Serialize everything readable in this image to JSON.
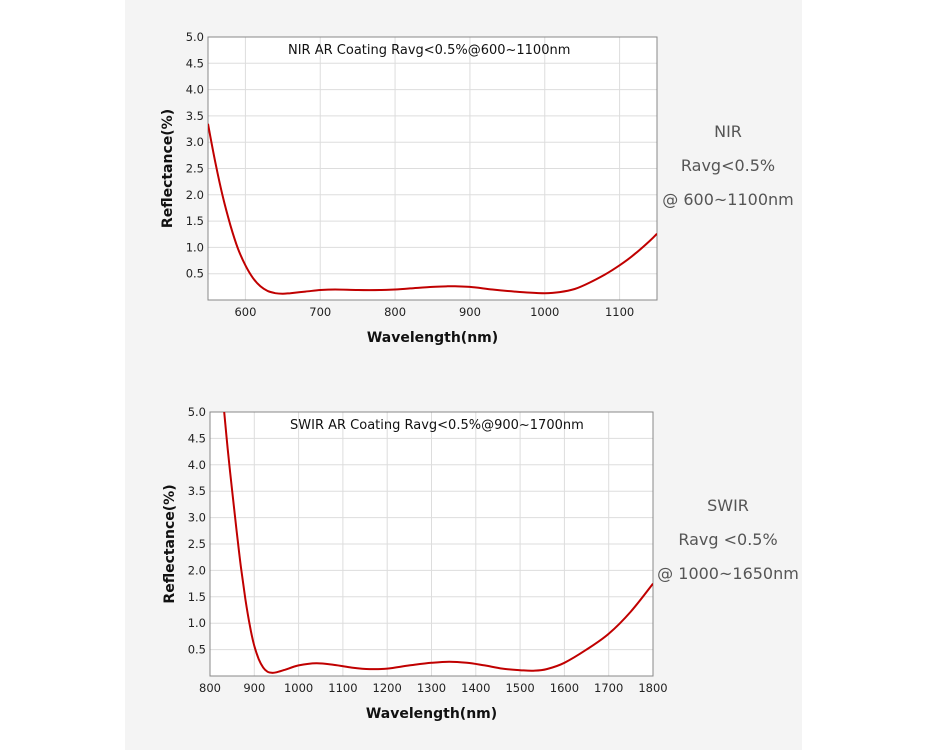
{
  "colors": {
    "background": "#f4f4f4",
    "plot_background": "#ffffff",
    "grid": "#dddddd",
    "curve": "#c00000"
  },
  "chart_data": [
    {
      "type": "line",
      "title": "NIR AR Coating Ravg<0.5%@600~1100nm",
      "xlabel": "Wavelength(nm)",
      "ylabel": "Reflectance(%)",
      "xlim": [
        550,
        1150
      ],
      "ylim": [
        0,
        5.0
      ],
      "x_ticks": [
        "600",
        "700",
        "800",
        "900",
        "1000",
        "1100"
      ],
      "y_ticks": [
        "0.5",
        "1.0",
        "1.5",
        "2.0",
        "2.5",
        "3.0",
        "3.5",
        "4.0",
        "4.5",
        "5.0"
      ],
      "grid": true,
      "series": [
        {
          "x": [
            550,
            560,
            570,
            580,
            590,
            600,
            610,
            620,
            630,
            640,
            650,
            660,
            680,
            700,
            720,
            750,
            780,
            800,
            820,
            850,
            870,
            880,
            900,
            930,
            960,
            980,
            1000,
            1020,
            1040,
            1060,
            1080,
            1100,
            1120,
            1140,
            1150
          ],
          "y": [
            3.35,
            2.6,
            1.95,
            1.42,
            0.98,
            0.66,
            0.42,
            0.26,
            0.17,
            0.13,
            0.12,
            0.13,
            0.16,
            0.19,
            0.2,
            0.19,
            0.19,
            0.2,
            0.22,
            0.25,
            0.26,
            0.26,
            0.25,
            0.2,
            0.16,
            0.14,
            0.13,
            0.15,
            0.21,
            0.33,
            0.48,
            0.66,
            0.87,
            1.12,
            1.26
          ]
        }
      ]
    },
    {
      "type": "line",
      "title": "SWIR AR Coating Ravg<0.5%@900~1700nm",
      "xlabel": "Wavelength(nm)",
      "ylabel": "Reflectance(%)",
      "xlim": [
        800,
        1800
      ],
      "ylim": [
        0,
        5.0
      ],
      "x_ticks": [
        "800",
        "900",
        "1000",
        "1100",
        "1200",
        "1300",
        "1400",
        "1500",
        "1600",
        "1700",
        "1800"
      ],
      "y_ticks": [
        "0.5",
        "1.0",
        "1.5",
        "2.0",
        "2.5",
        "3.0",
        "3.5",
        "4.0",
        "4.5",
        "5.0"
      ],
      "grid": true,
      "series": [
        {
          "x": [
            832,
            840,
            850,
            860,
            870,
            880,
            890,
            900,
            910,
            920,
            930,
            940,
            950,
            970,
            1000,
            1040,
            1080,
            1120,
            1160,
            1200,
            1250,
            1300,
            1340,
            1380,
            1420,
            1460,
            1500,
            1530,
            1560,
            1600,
            1650,
            1700,
            1750,
            1800
          ],
          "y": [
            5.0,
            4.3,
            3.5,
            2.75,
            2.05,
            1.45,
            0.95,
            0.57,
            0.32,
            0.16,
            0.08,
            0.06,
            0.07,
            0.12,
            0.2,
            0.24,
            0.21,
            0.16,
            0.13,
            0.14,
            0.2,
            0.25,
            0.27,
            0.25,
            0.2,
            0.14,
            0.11,
            0.1,
            0.13,
            0.25,
            0.5,
            0.8,
            1.22,
            1.75
          ]
        }
      ]
    }
  ],
  "side_labels": [
    {
      "line1": "NIR",
      "line2": "Ravg<0.5%",
      "line3": "@ 600~1100nm"
    },
    {
      "line1": "SWIR",
      "line2": "Ravg <0.5%",
      "line3": "@ 1000~1650nm"
    }
  ]
}
